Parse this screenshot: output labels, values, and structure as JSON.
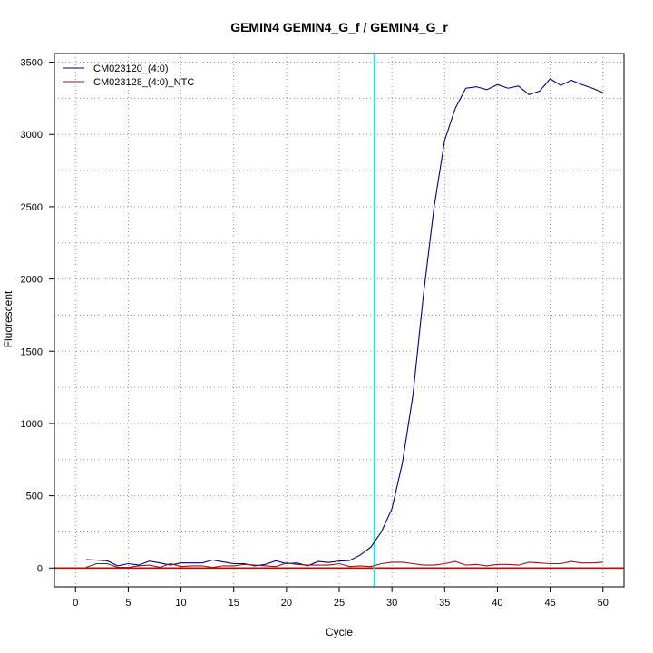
{
  "chart_data": {
    "type": "line",
    "title": "GEMIN4  GEMIN4_G_f / GEMIN4_G_r",
    "xlabel": "Cycle",
    "ylabel": "Fluorescent",
    "xlim": [
      -2,
      52
    ],
    "ylim": [
      -130,
      3560
    ],
    "x_ticks": [
      0,
      5,
      10,
      15,
      20,
      25,
      30,
      35,
      40,
      45,
      50
    ],
    "y_ticks": [
      0,
      500,
      1000,
      1500,
      2000,
      2500,
      3000,
      3500
    ],
    "grid": true,
    "legend_position": "top-left",
    "threshold_x": 28.3,
    "threshold_color": "#00eeee",
    "baseline_y": 0,
    "baseline_color": "#cc0000",
    "x": [
      1,
      2,
      3,
      4,
      5,
      6,
      7,
      8,
      9,
      10,
      11,
      12,
      13,
      14,
      15,
      16,
      17,
      18,
      19,
      20,
      21,
      22,
      23,
      24,
      25,
      26,
      27,
      28,
      29,
      30,
      31,
      32,
      33,
      34,
      35,
      36,
      37,
      38,
      39,
      40,
      41,
      42,
      43,
      44,
      45,
      46,
      47,
      48,
      49,
      50
    ],
    "series": [
      {
        "name": "CM023120_(4:0)",
        "color": "#000080",
        "values": [
          58,
          55,
          50,
          15,
          30,
          20,
          48,
          35,
          20,
          35,
          35,
          35,
          55,
          42,
          30,
          30,
          15,
          25,
          50,
          30,
          35,
          15,
          45,
          38,
          48,
          52,
          90,
          145,
          250,
          410,
          730,
          1200,
          1900,
          2500,
          2960,
          3180,
          3320,
          3330,
          3310,
          3345,
          3320,
          3335,
          3275,
          3300,
          3385,
          3340,
          3375,
          3345,
          3320,
          3290
        ]
      },
      {
        "name": "CM023128_(4:0)_NTC",
        "color": "#8b1a1a",
        "values": [
          5,
          30,
          30,
          5,
          5,
          15,
          20,
          5,
          30,
          10,
          15,
          15,
          5,
          15,
          15,
          25,
          20,
          15,
          10,
          35,
          25,
          20,
          20,
          20,
          30,
          10,
          15,
          10,
          30,
          40,
          40,
          30,
          20,
          20,
          30,
          45,
          20,
          25,
          15,
          25,
          25,
          20,
          40,
          35,
          30,
          30,
          45,
          35,
          35,
          40
        ]
      }
    ]
  }
}
